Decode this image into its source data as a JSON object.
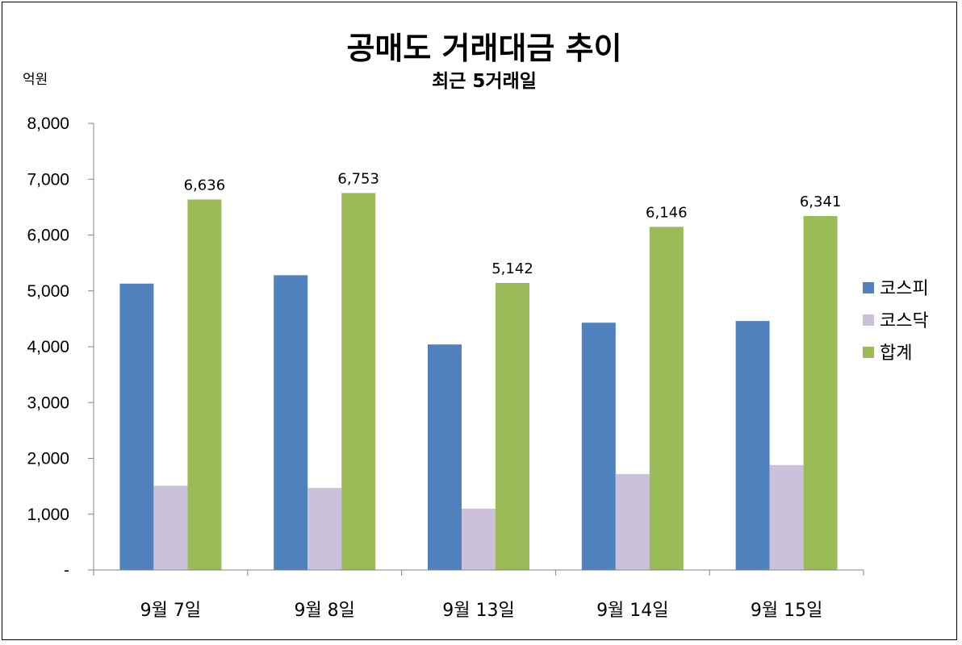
{
  "chart_data": {
    "type": "bar",
    "title": "공매도 거래대금 추이",
    "subtitle": "최근 5거래일",
    "ylabel": "억원",
    "ylim": [
      0,
      8000
    ],
    "yticks": [
      {
        "value": 0,
        "label": "-"
      },
      {
        "value": 1000,
        "label": "1,000"
      },
      {
        "value": 2000,
        "label": "2,000"
      },
      {
        "value": 3000,
        "label": "3,000"
      },
      {
        "value": 4000,
        "label": "4,000"
      },
      {
        "value": 5000,
        "label": "5,000"
      },
      {
        "value": 6000,
        "label": "6,000"
      },
      {
        "value": 7000,
        "label": "7,000"
      },
      {
        "value": 8000,
        "label": "8,000"
      }
    ],
    "categories": [
      "9월 7일",
      "9월 8일",
      "9월 13일",
      "9월 14일",
      "9월 15일"
    ],
    "series": [
      {
        "name": "코스피",
        "color": "#4f81bd",
        "values": [
          5130,
          5280,
          4040,
          4430,
          4460
        ],
        "labels": null
      },
      {
        "name": "코스닥",
        "color": "#ccc1da",
        "values": [
          1510,
          1470,
          1100,
          1720,
          1880
        ],
        "labels": null
      },
      {
        "name": "합계",
        "color": "#9bbb59",
        "values": [
          6636,
          6753,
          5142,
          6146,
          6341
        ],
        "labels": [
          "6,636",
          "6,753",
          "5,142",
          "6,146",
          "6,341"
        ]
      }
    ],
    "legend_position": "right",
    "grid": false
  }
}
